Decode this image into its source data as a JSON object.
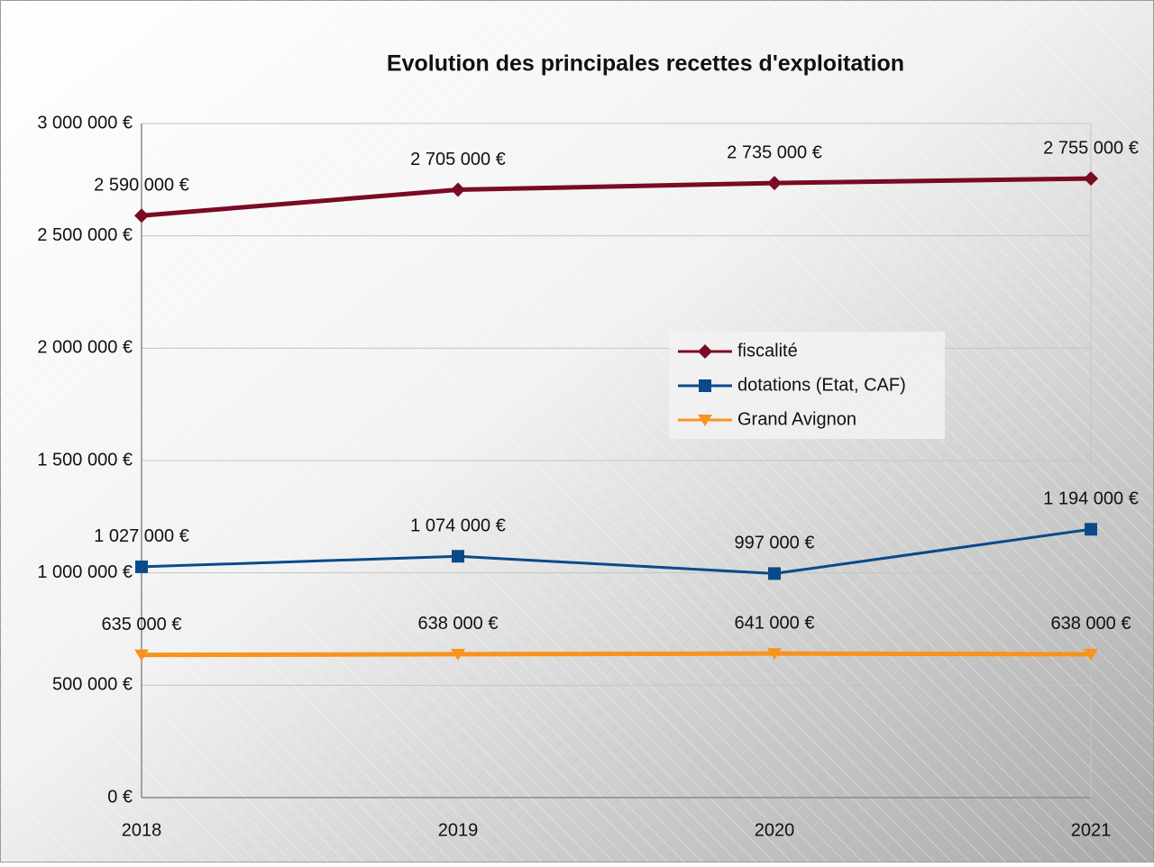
{
  "chart_data": {
    "type": "line",
    "title": "Evolution des principales recettes d'exploitation",
    "categories": [
      "2018",
      "2019",
      "2020",
      "2021"
    ],
    "series": [
      {
        "name": "fiscalité",
        "color": "#7b0a24",
        "marker": "diamond",
        "values": [
          2590000,
          2705000,
          2735000,
          2755000
        ],
        "value_labels": [
          "2 590 000 €",
          "2 705 000 €",
          "2 735 000 €",
          "2 755 000 €"
        ]
      },
      {
        "name": "dotations (Etat, CAF)",
        "color": "#0b4a8a",
        "marker": "square",
        "values": [
          1027000,
          1074000,
          997000,
          1194000
        ],
        "value_labels": [
          "1 027 000 €",
          "1 074 000 €",
          "997 000 €",
          "1 194 000 €"
        ]
      },
      {
        "name": "Grand Avignon",
        "color": "#f7941d",
        "marker": "triangle-down",
        "values": [
          635000,
          638000,
          641000,
          638000
        ],
        "value_labels": [
          "635 000 €",
          "638 000 €",
          "641 000 €",
          "638 000 €"
        ]
      }
    ],
    "ylim": [
      0,
      3000000
    ],
    "yticks": [
      {
        "value": 0,
        "label": "0 €"
      },
      {
        "value": 500000,
        "label": "500 000 €"
      },
      {
        "value": 1000000,
        "label": "1 000 000 €"
      },
      {
        "value": 1500000,
        "label": "1 500 000 €"
      },
      {
        "value": 2000000,
        "label": "2 000 000 €"
      },
      {
        "value": 2500000,
        "label": "2 500 000 €"
      },
      {
        "value": 3000000,
        "label": "3 000 000 €"
      }
    ],
    "grid": true
  }
}
